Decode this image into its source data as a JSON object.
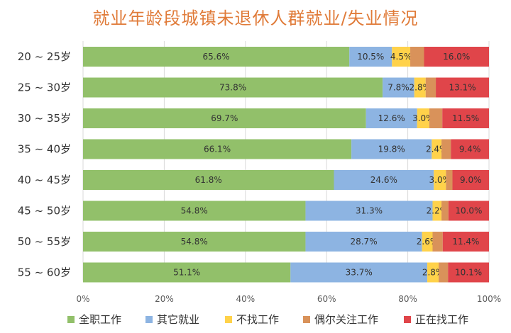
{
  "title": "就业年龄段城镇未退休人群就业/失业情况",
  "chart_data": {
    "type": "bar",
    "orientation": "horizontal",
    "stacked": "percent",
    "title": "就业年龄段城镇未退休人群就业/失业情况",
    "categories": [
      "20 ~ 25岁",
      "25 ~ 30岁",
      "30 ~ 35岁",
      "35 ~ 40岁",
      "40 ~ 45岁",
      "45 ~ 50岁",
      "50 ~ 55岁",
      "55 ~ 60岁"
    ],
    "series": [
      {
        "name": "全职工作",
        "color": "#92c06a",
        "values": [
          65.6,
          73.8,
          69.7,
          66.1,
          61.8,
          54.8,
          54.8,
          51.1
        ]
      },
      {
        "name": "其它就业",
        "color": "#8db4e2",
        "values": [
          10.5,
          7.8,
          12.6,
          19.8,
          24.6,
          31.3,
          28.7,
          33.7
        ]
      },
      {
        "name": "不找工作",
        "color": "#ffd24a",
        "values": [
          4.5,
          2.8,
          3.0,
          2.4,
          3.0,
          2.2,
          2.6,
          2.8
        ]
      },
      {
        "name": "偶尔关注工作",
        "color": "#d9925a",
        "values": [
          3.4,
          2.5,
          3.2,
          2.3,
          1.6,
          1.7,
          2.5,
          2.3
        ]
      },
      {
        "name": "正在找工作",
        "color": "#e0454a",
        "values": [
          16.0,
          13.1,
          11.5,
          9.4,
          9.0,
          10.0,
          11.4,
          10.1
        ]
      }
    ],
    "labels": [
      [
        "65.6%",
        "10.5%",
        "4.5%",
        "",
        "16.0%"
      ],
      [
        "73.8%",
        "7.8%",
        "2.8%",
        "",
        "13.1%"
      ],
      [
        "69.7%",
        "12.6%",
        "3.0%",
        "",
        "11.5%"
      ],
      [
        "66.1%",
        "19.8%",
        "2.4%",
        "",
        "9.4%"
      ],
      [
        "61.8%",
        "24.6%",
        "3.0%",
        "",
        "9.0%"
      ],
      [
        "54.8%",
        "31.3%",
        "2.2%",
        "",
        "10.0%"
      ],
      [
        "54.8%",
        "28.7%",
        "2.6%",
        "",
        "11.4%"
      ],
      [
        "51.1%",
        "33.7%",
        "2.8%",
        "",
        "10.1%"
      ]
    ],
    "xticks": [
      "0%",
      "20%",
      "40%",
      "60%",
      "80%",
      "100%"
    ],
    "xlim": [
      0,
      100
    ],
    "grid": true,
    "legend_position": "bottom"
  }
}
